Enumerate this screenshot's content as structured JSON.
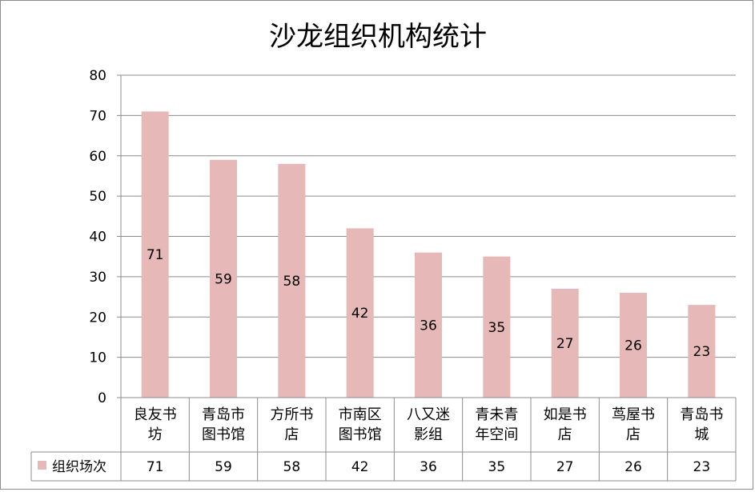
{
  "chart_data": {
    "type": "bar",
    "title": "沙龙组织机构统计",
    "categories": [
      [
        "良友书",
        "坊"
      ],
      [
        "青岛市",
        "图书馆"
      ],
      [
        "方所书",
        "店"
      ],
      [
        "市南区",
        "图书馆"
      ],
      [
        "八又迷",
        "影组"
      ],
      [
        "青未青",
        "年空间"
      ],
      [
        "如是书",
        "店"
      ],
      [
        "茑屋书",
        "店"
      ],
      [
        "青岛书",
        "城"
      ]
    ],
    "series": [
      {
        "name": "组织场次",
        "values": [
          71,
          59,
          58,
          42,
          36,
          35,
          27,
          26,
          23
        ],
        "color": "#e6b8b7"
      }
    ],
    "yticks": [
      0,
      10,
      20,
      30,
      40,
      50,
      60,
      70,
      80
    ],
    "ylim": [
      0,
      80
    ],
    "grid": true,
    "data_labels": "inside-center",
    "legend": "data-table",
    "data_table": true
  }
}
